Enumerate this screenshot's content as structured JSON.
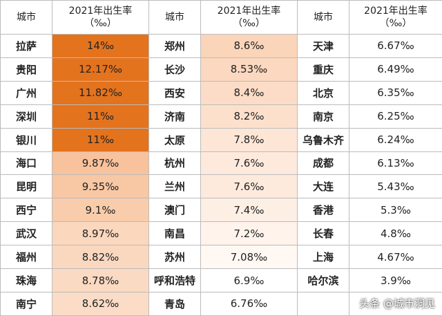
{
  "table": {
    "header": [
      "城市",
      "2021年出生率\n（‰）",
      "城市",
      "2021年出生率\n（‰）",
      "城市",
      "2021年出生率\n（‰）"
    ],
    "rows": [
      [
        "拉萨",
        "14‰",
        "郑州",
        "8.6‰",
        "天津",
        "6.67‰"
      ],
      [
        "贵阳",
        "12.17‰",
        "长沙",
        "8.53‰",
        "重庆",
        "6.49‰"
      ],
      [
        "广州",
        "11.82‰",
        "西安",
        "8.4‰",
        "北京",
        "6.35‰"
      ],
      [
        "深圳",
        "11‰",
        "济南",
        "8.2‰",
        "南京",
        "6.25‰"
      ],
      [
        "银川",
        "11‰",
        "太原",
        "7.8‰",
        "乌鲁木齐",
        "6.24‰"
      ],
      [
        "海口",
        "9.87‰",
        "杭州",
        "7.6‰",
        "成都",
        "6.13‰"
      ],
      [
        "昆明",
        "9.35‰",
        "兰州",
        "7.6‰",
        "大连",
        "5.43‰"
      ],
      [
        "西宁",
        "9.1‰",
        "澳门",
        "7.4‰",
        "香港",
        "5.3‰"
      ],
      [
        "武汉",
        "8.97‰",
        "南昌",
        "7.2‰",
        "长春",
        "4.8‰"
      ],
      [
        "福州",
        "8.82‰",
        "苏州",
        "7.08‰",
        "上海",
        "4.67‰"
      ],
      [
        "珠海",
        "8.78‰",
        "呼和浩特",
        "6.9‰",
        "哈尔滨",
        "3.9‰"
      ],
      [
        "南宁",
        "8.62‰",
        "青岛",
        "6.76‰"
      ]
    ]
  },
  "watermark": "头条 @城市洞见"
}
